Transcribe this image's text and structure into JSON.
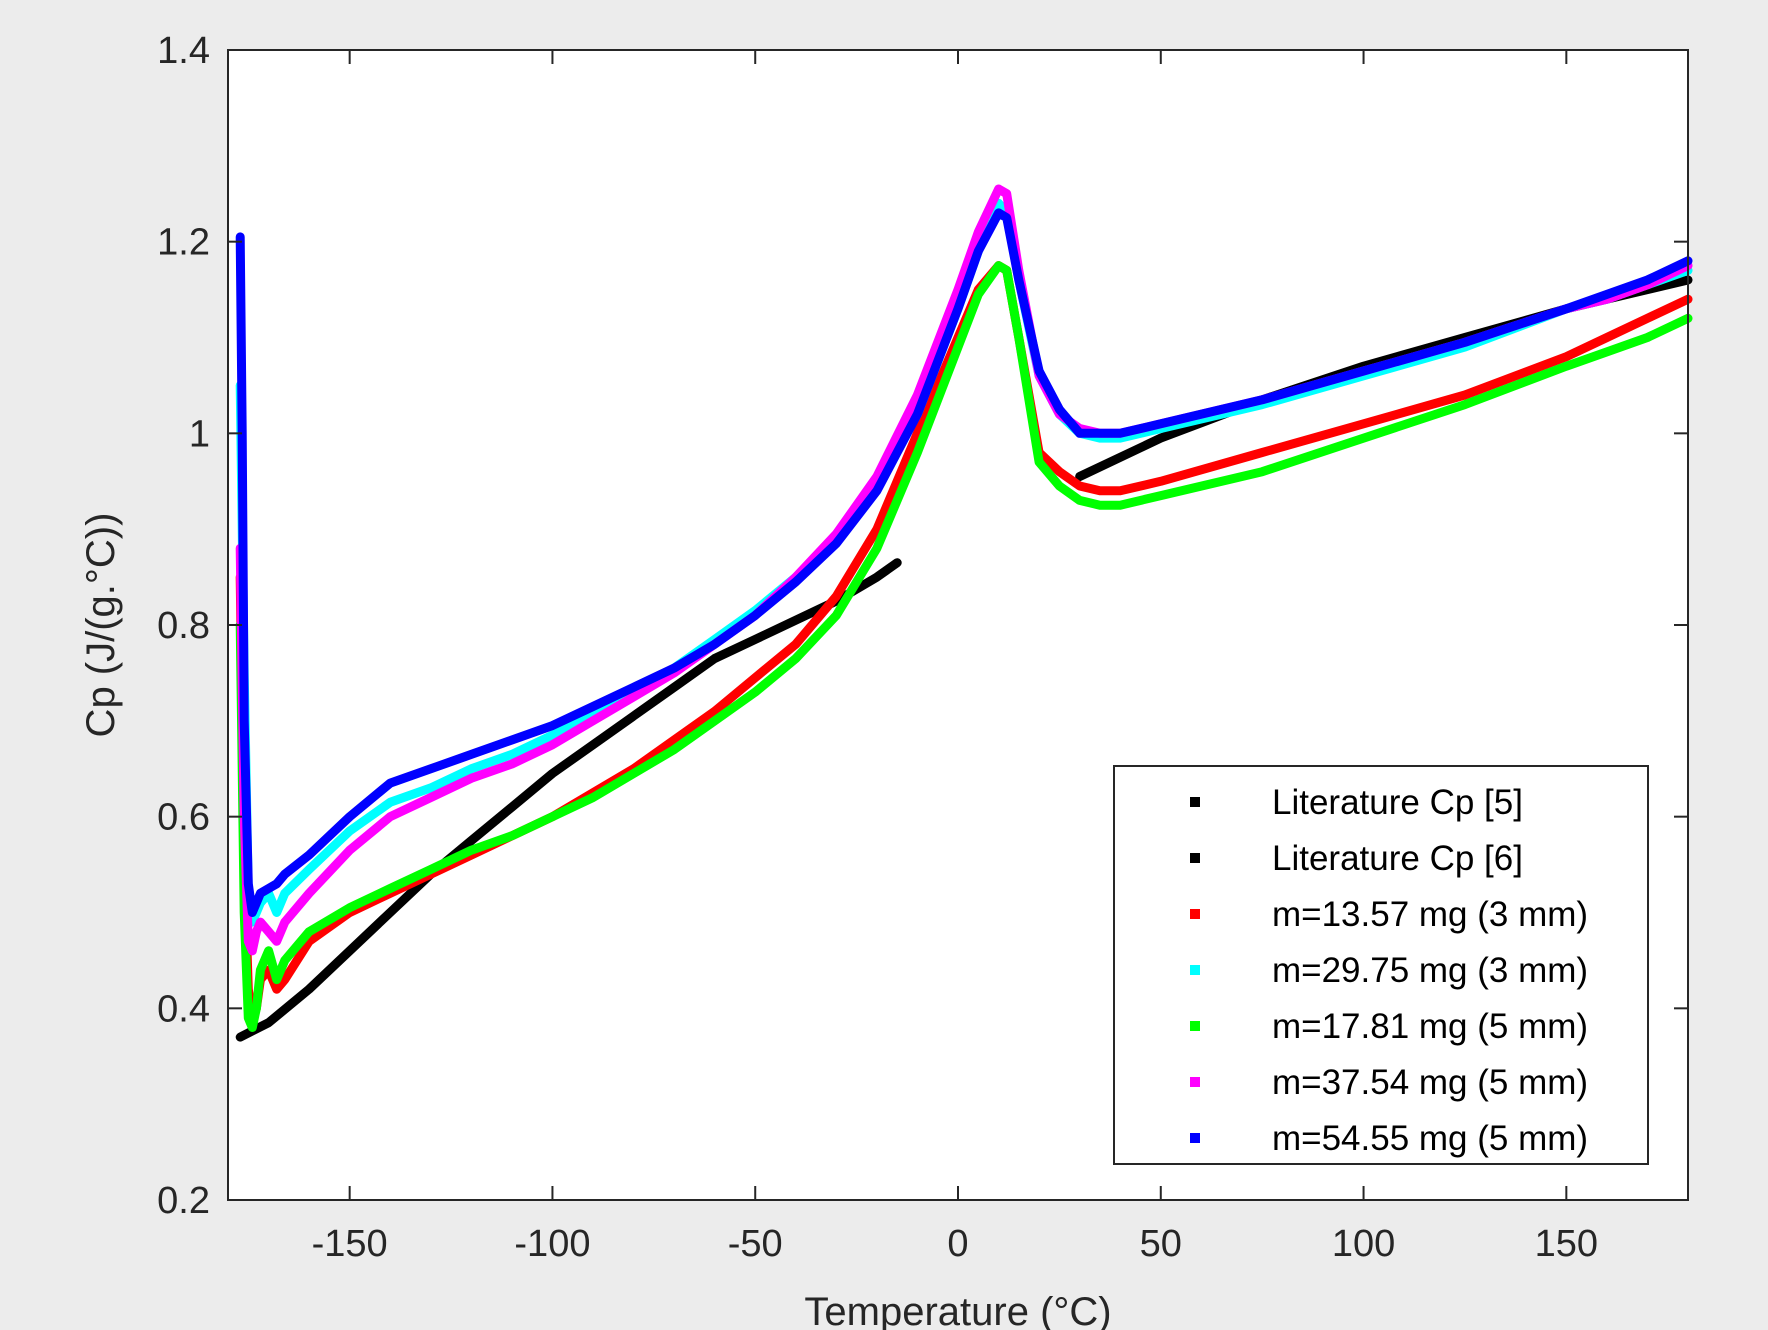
{
  "chart_data": {
    "type": "line",
    "title": "",
    "xlabel": "Temperature (°C)",
    "ylabel": "Cp (J/(g.°C))",
    "xlim": [
      -180,
      180
    ],
    "ylim": [
      0.2,
      1.4
    ],
    "xticks": [
      -150,
      -100,
      -50,
      0,
      50,
      100,
      150
    ],
    "xtick_labels": [
      "-150",
      "-100",
      "-50",
      "0",
      "50",
      "100",
      "150"
    ],
    "yticks": [
      0.2,
      0.4,
      0.6,
      0.8,
      1.0,
      1.2,
      1.4
    ],
    "ytick_labels": [
      "0.2",
      "0.4",
      "0.6",
      "0.8",
      "1",
      "1.2",
      "1.4"
    ],
    "grid": false,
    "legend_position": "bottom-right",
    "series": [
      {
        "name": "Literature Cp [5]",
        "color": "#000000",
        "x": [
          -177,
          -170,
          -160,
          -150,
          -140,
          -130,
          -120,
          -110,
          -100,
          -90,
          -80,
          -70,
          -60,
          -50,
          -40,
          -30,
          -20,
          -15
        ],
        "y": [
          0.37,
          0.385,
          0.42,
          0.46,
          0.5,
          0.54,
          0.575,
          0.61,
          0.645,
          0.675,
          0.705,
          0.735,
          0.765,
          0.785,
          0.805,
          0.825,
          0.85,
          0.865
        ]
      },
      {
        "name": "Literature Cp [6]",
        "color": "#000000",
        "x": [
          30,
          50,
          75,
          100,
          125,
          150,
          180
        ],
        "y": [
          0.955,
          0.995,
          1.035,
          1.07,
          1.1,
          1.13,
          1.16
        ]
      },
      {
        "name": "m=13.57 mg (3 mm)",
        "color": "#ff0000",
        "x": [
          -177,
          -176,
          -175,
          -174,
          -173,
          -172,
          -170,
          -168,
          -166,
          -160,
          -150,
          -140,
          -130,
          -120,
          -110,
          -100,
          -90,
          -80,
          -70,
          -60,
          -50,
          -40,
          -30,
          -20,
          -10,
          0,
          5,
          10,
          12,
          15,
          20,
          25,
          30,
          35,
          40,
          50,
          75,
          100,
          125,
          150,
          160,
          170,
          180
        ],
        "y": [
          0.85,
          0.55,
          0.42,
          0.39,
          0.4,
          0.43,
          0.44,
          0.42,
          0.43,
          0.47,
          0.5,
          0.52,
          0.54,
          0.56,
          0.58,
          0.6,
          0.625,
          0.65,
          0.68,
          0.71,
          0.745,
          0.78,
          0.83,
          0.9,
          1.0,
          1.1,
          1.15,
          1.175,
          1.17,
          1.1,
          0.98,
          0.96,
          0.945,
          0.94,
          0.94,
          0.95,
          0.98,
          1.01,
          1.04,
          1.08,
          1.1,
          1.12,
          1.14
        ]
      },
      {
        "name": "m=29.75 mg (3 mm)",
        "color": "#00ffff",
        "x": [
          -177,
          -176,
          -175,
          -174,
          -173,
          -172,
          -170,
          -168,
          -166,
          -160,
          -150,
          -140,
          -130,
          -120,
          -110,
          -100,
          -90,
          -80,
          -70,
          -60,
          -50,
          -40,
          -30,
          -20,
          -10,
          0,
          5,
          10,
          12,
          15,
          20,
          25,
          30,
          35,
          40,
          50,
          75,
          100,
          125,
          150,
          160,
          170,
          180
        ],
        "y": [
          1.05,
          0.75,
          0.52,
          0.49,
          0.5,
          0.51,
          0.52,
          0.5,
          0.52,
          0.545,
          0.585,
          0.615,
          0.63,
          0.65,
          0.665,
          0.685,
          0.705,
          0.73,
          0.755,
          0.785,
          0.815,
          0.85,
          0.89,
          0.945,
          1.02,
          1.13,
          1.19,
          1.24,
          1.23,
          1.16,
          1.06,
          1.02,
          1.0,
          0.995,
          0.995,
          1.005,
          1.03,
          1.06,
          1.09,
          1.13,
          1.14,
          1.155,
          1.17
        ]
      },
      {
        "name": "m=17.81 mg (5 mm)",
        "color": "#00ff00",
        "x": [
          -177,
          -176,
          -175,
          -174,
          -173,
          -172,
          -170,
          -168,
          -166,
          -160,
          -150,
          -140,
          -130,
          -120,
          -110,
          -100,
          -90,
          -80,
          -70,
          -60,
          -50,
          -40,
          -30,
          -20,
          -10,
          0,
          5,
          10,
          12,
          15,
          20,
          25,
          30,
          35,
          40,
          50,
          75,
          100,
          125,
          150,
          160,
          170,
          180
        ],
        "y": [
          0.8,
          0.5,
          0.39,
          0.38,
          0.4,
          0.44,
          0.46,
          0.43,
          0.45,
          0.48,
          0.505,
          0.525,
          0.545,
          0.565,
          0.58,
          0.6,
          0.62,
          0.645,
          0.67,
          0.7,
          0.73,
          0.765,
          0.81,
          0.88,
          0.98,
          1.09,
          1.145,
          1.175,
          1.17,
          1.1,
          0.97,
          0.945,
          0.93,
          0.925,
          0.925,
          0.935,
          0.96,
          0.995,
          1.03,
          1.07,
          1.085,
          1.1,
          1.12
        ]
      },
      {
        "name": "m=37.54 mg (5 mm)",
        "color": "#ff00ff",
        "x": [
          -177,
          -176,
          -175,
          -174,
          -173,
          -172,
          -170,
          -168,
          -166,
          -160,
          -150,
          -140,
          -130,
          -120,
          -110,
          -100,
          -90,
          -80,
          -70,
          -60,
          -50,
          -40,
          -30,
          -20,
          -10,
          0,
          5,
          10,
          12,
          15,
          20,
          25,
          30,
          35,
          40,
          50,
          75,
          100,
          125,
          150,
          160,
          170,
          180
        ],
        "y": [
          0.88,
          0.6,
          0.47,
          0.46,
          0.48,
          0.49,
          0.48,
          0.47,
          0.49,
          0.52,
          0.565,
          0.6,
          0.62,
          0.64,
          0.655,
          0.675,
          0.7,
          0.725,
          0.75,
          0.78,
          0.81,
          0.85,
          0.895,
          0.955,
          1.04,
          1.15,
          1.21,
          1.255,
          1.25,
          1.17,
          1.06,
          1.02,
          1.005,
          1.0,
          1.0,
          1.01,
          1.035,
          1.065,
          1.095,
          1.13,
          1.14,
          1.155,
          1.175
        ]
      },
      {
        "name": "m=54.55 mg (5 mm)",
        "color": "#0000ff",
        "x": [
          -177,
          -176.5,
          -176,
          -175,
          -174,
          -173,
          -172,
          -170,
          -168,
          -166,
          -160,
          -150,
          -140,
          -130,
          -120,
          -110,
          -100,
          -90,
          -80,
          -70,
          -60,
          -50,
          -40,
          -30,
          -20,
          -10,
          0,
          5,
          10,
          12,
          15,
          20,
          25,
          30,
          35,
          40,
          50,
          75,
          100,
          125,
          150,
          160,
          170,
          180
        ],
        "y": [
          1.205,
          1.0,
          0.7,
          0.53,
          0.5,
          0.51,
          0.52,
          0.525,
          0.53,
          0.54,
          0.56,
          0.6,
          0.635,
          0.65,
          0.665,
          0.68,
          0.695,
          0.715,
          0.735,
          0.755,
          0.78,
          0.81,
          0.845,
          0.885,
          0.94,
          1.02,
          1.13,
          1.19,
          1.23,
          1.225,
          1.16,
          1.065,
          1.025,
          1.0,
          1.0,
          1.0,
          1.01,
          1.035,
          1.065,
          1.095,
          1.13,
          1.145,
          1.16,
          1.18
        ]
      }
    ]
  }
}
